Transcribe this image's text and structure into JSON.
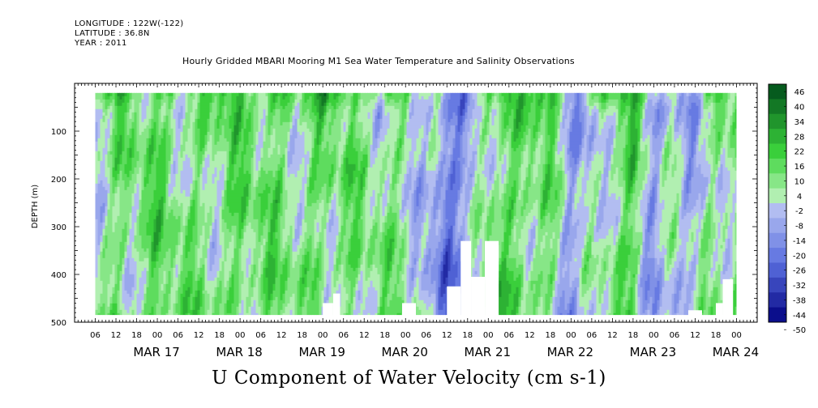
{
  "header": {
    "longitude": "LONGITUDE : 122W(-122)",
    "latitude": "LATITUDE : 36.8N",
    "year": "YEAR : 2011",
    "title": "Hourly Gridded MBARI Mooring M1 Sea Water Temperature and Salinity Observations"
  },
  "chart_data": {
    "type": "heatmap",
    "title": "Hourly Gridded MBARI Mooring M1 Sea Water Temperature and Salinity Observations",
    "subtitle": "U Component of Water Velocity (cm s-1)",
    "ylabel": "DEPTH (m)",
    "ylim": [
      500,
      0
    ],
    "yticks": [
      100,
      200,
      300,
      400,
      500
    ],
    "depth_range": [
      20,
      485
    ],
    "x_start": "MAR 16 00:00",
    "x_end": "MAR 24 06:00",
    "data_start": "MAR 16 06:00",
    "data_end": "MAR 24 00:00",
    "hour_ticks": [
      "06",
      "12",
      "18",
      "00",
      "06",
      "12",
      "18",
      "00",
      "06",
      "12",
      "18",
      "00",
      "06",
      "12",
      "18",
      "00",
      "06",
      "12",
      "18",
      "00",
      "06",
      "12",
      "18",
      "00",
      "06",
      "12",
      "18",
      "00",
      "06",
      "12",
      "18",
      "00"
    ],
    "dates": [
      "MAR 17",
      "MAR 18",
      "MAR 19",
      "MAR 20",
      "MAR 21",
      "MAR 22",
      "MAR 23",
      "MAR 24"
    ],
    "colorbar": {
      "labels": [
        "46",
        "40",
        "34",
        "28",
        "22",
        "16",
        "10",
        "4",
        "-2",
        "-8",
        "-14",
        "-20",
        "-26",
        "-32",
        "-38",
        "-44",
        "-50"
      ],
      "min": -50,
      "max": 46,
      "colors": {
        "neg_deep": "#000080",
        "neg_mid": "#5a6fe0",
        "neg_light": "#b6c1f2",
        "pos_light": "#b4f0b4",
        "pos_mid": "#3cd43c",
        "pos_deep": "#004d1a"
      }
    },
    "time_profile": [
      [
        "MAR 16 06:00",
        4
      ],
      [
        "MAR 16 18:00",
        8
      ],
      [
        "MAR 17 00:00",
        10
      ],
      [
        "MAR 17 12:00",
        6
      ],
      [
        "MAR 18 00:00",
        10
      ],
      [
        "MAR 18 12:00",
        8
      ],
      [
        "MAR 18 18:00",
        6
      ],
      [
        "MAR 19 00:00",
        10
      ],
      [
        "MAR 19 12:00",
        6
      ],
      [
        "MAR 19 18:00",
        4
      ],
      [
        "MAR 20 00:00",
        6
      ],
      [
        "MAR 20 06:00",
        -8
      ],
      [
        "MAR 20 12:00",
        -20
      ],
      [
        "MAR 20 18:00",
        -16
      ],
      [
        "MAR 21 00:00",
        10
      ],
      [
        "MAR 21 12:00",
        12
      ],
      [
        "MAR 21 18:00",
        6
      ],
      [
        "MAR 22 00:00",
        -10
      ],
      [
        "MAR 22 06:00",
        -6
      ],
      [
        "MAR 22 12:00",
        8
      ],
      [
        "MAR 22 18:00",
        14
      ],
      [
        "MAR 23 00:00",
        -12
      ],
      [
        "MAR 23 06:00",
        -4
      ],
      [
        "MAR 23 12:00",
        -6
      ],
      [
        "MAR 23 18:00",
        4
      ],
      [
        "MAR 24 00:00",
        10
      ]
    ],
    "masked_regions": [
      {
        "start": "MAR 19 00:00",
        "end": "MAR 19 03:00",
        "top_depth": 460
      },
      {
        "start": "MAR 19 03:00",
        "end": "MAR 19 05:00",
        "top_depth": 440
      },
      {
        "start": "MAR 19 23:00",
        "end": "MAR 20 03:00",
        "top_depth": 460
      },
      {
        "start": "MAR 20 12:00",
        "end": "MAR 20 16:00",
        "top_depth": 425
      },
      {
        "start": "MAR 20 16:00",
        "end": "MAR 20 19:00",
        "top_depth": 330
      },
      {
        "start": "MAR 20 19:00",
        "end": "MAR 20 23:00",
        "top_depth": 405
      },
      {
        "start": "MAR 20 23:00",
        "end": "MAR 21 03:00",
        "top_depth": 330
      },
      {
        "start": "MAR 23 10:00",
        "end": "MAR 23 14:00",
        "top_depth": 475
      },
      {
        "start": "MAR 23 18:00",
        "end": "MAR 23 20:00",
        "top_depth": 460
      },
      {
        "start": "MAR 23 20:00",
        "end": "MAR 23 23:00",
        "top_depth": 410
      }
    ]
  }
}
